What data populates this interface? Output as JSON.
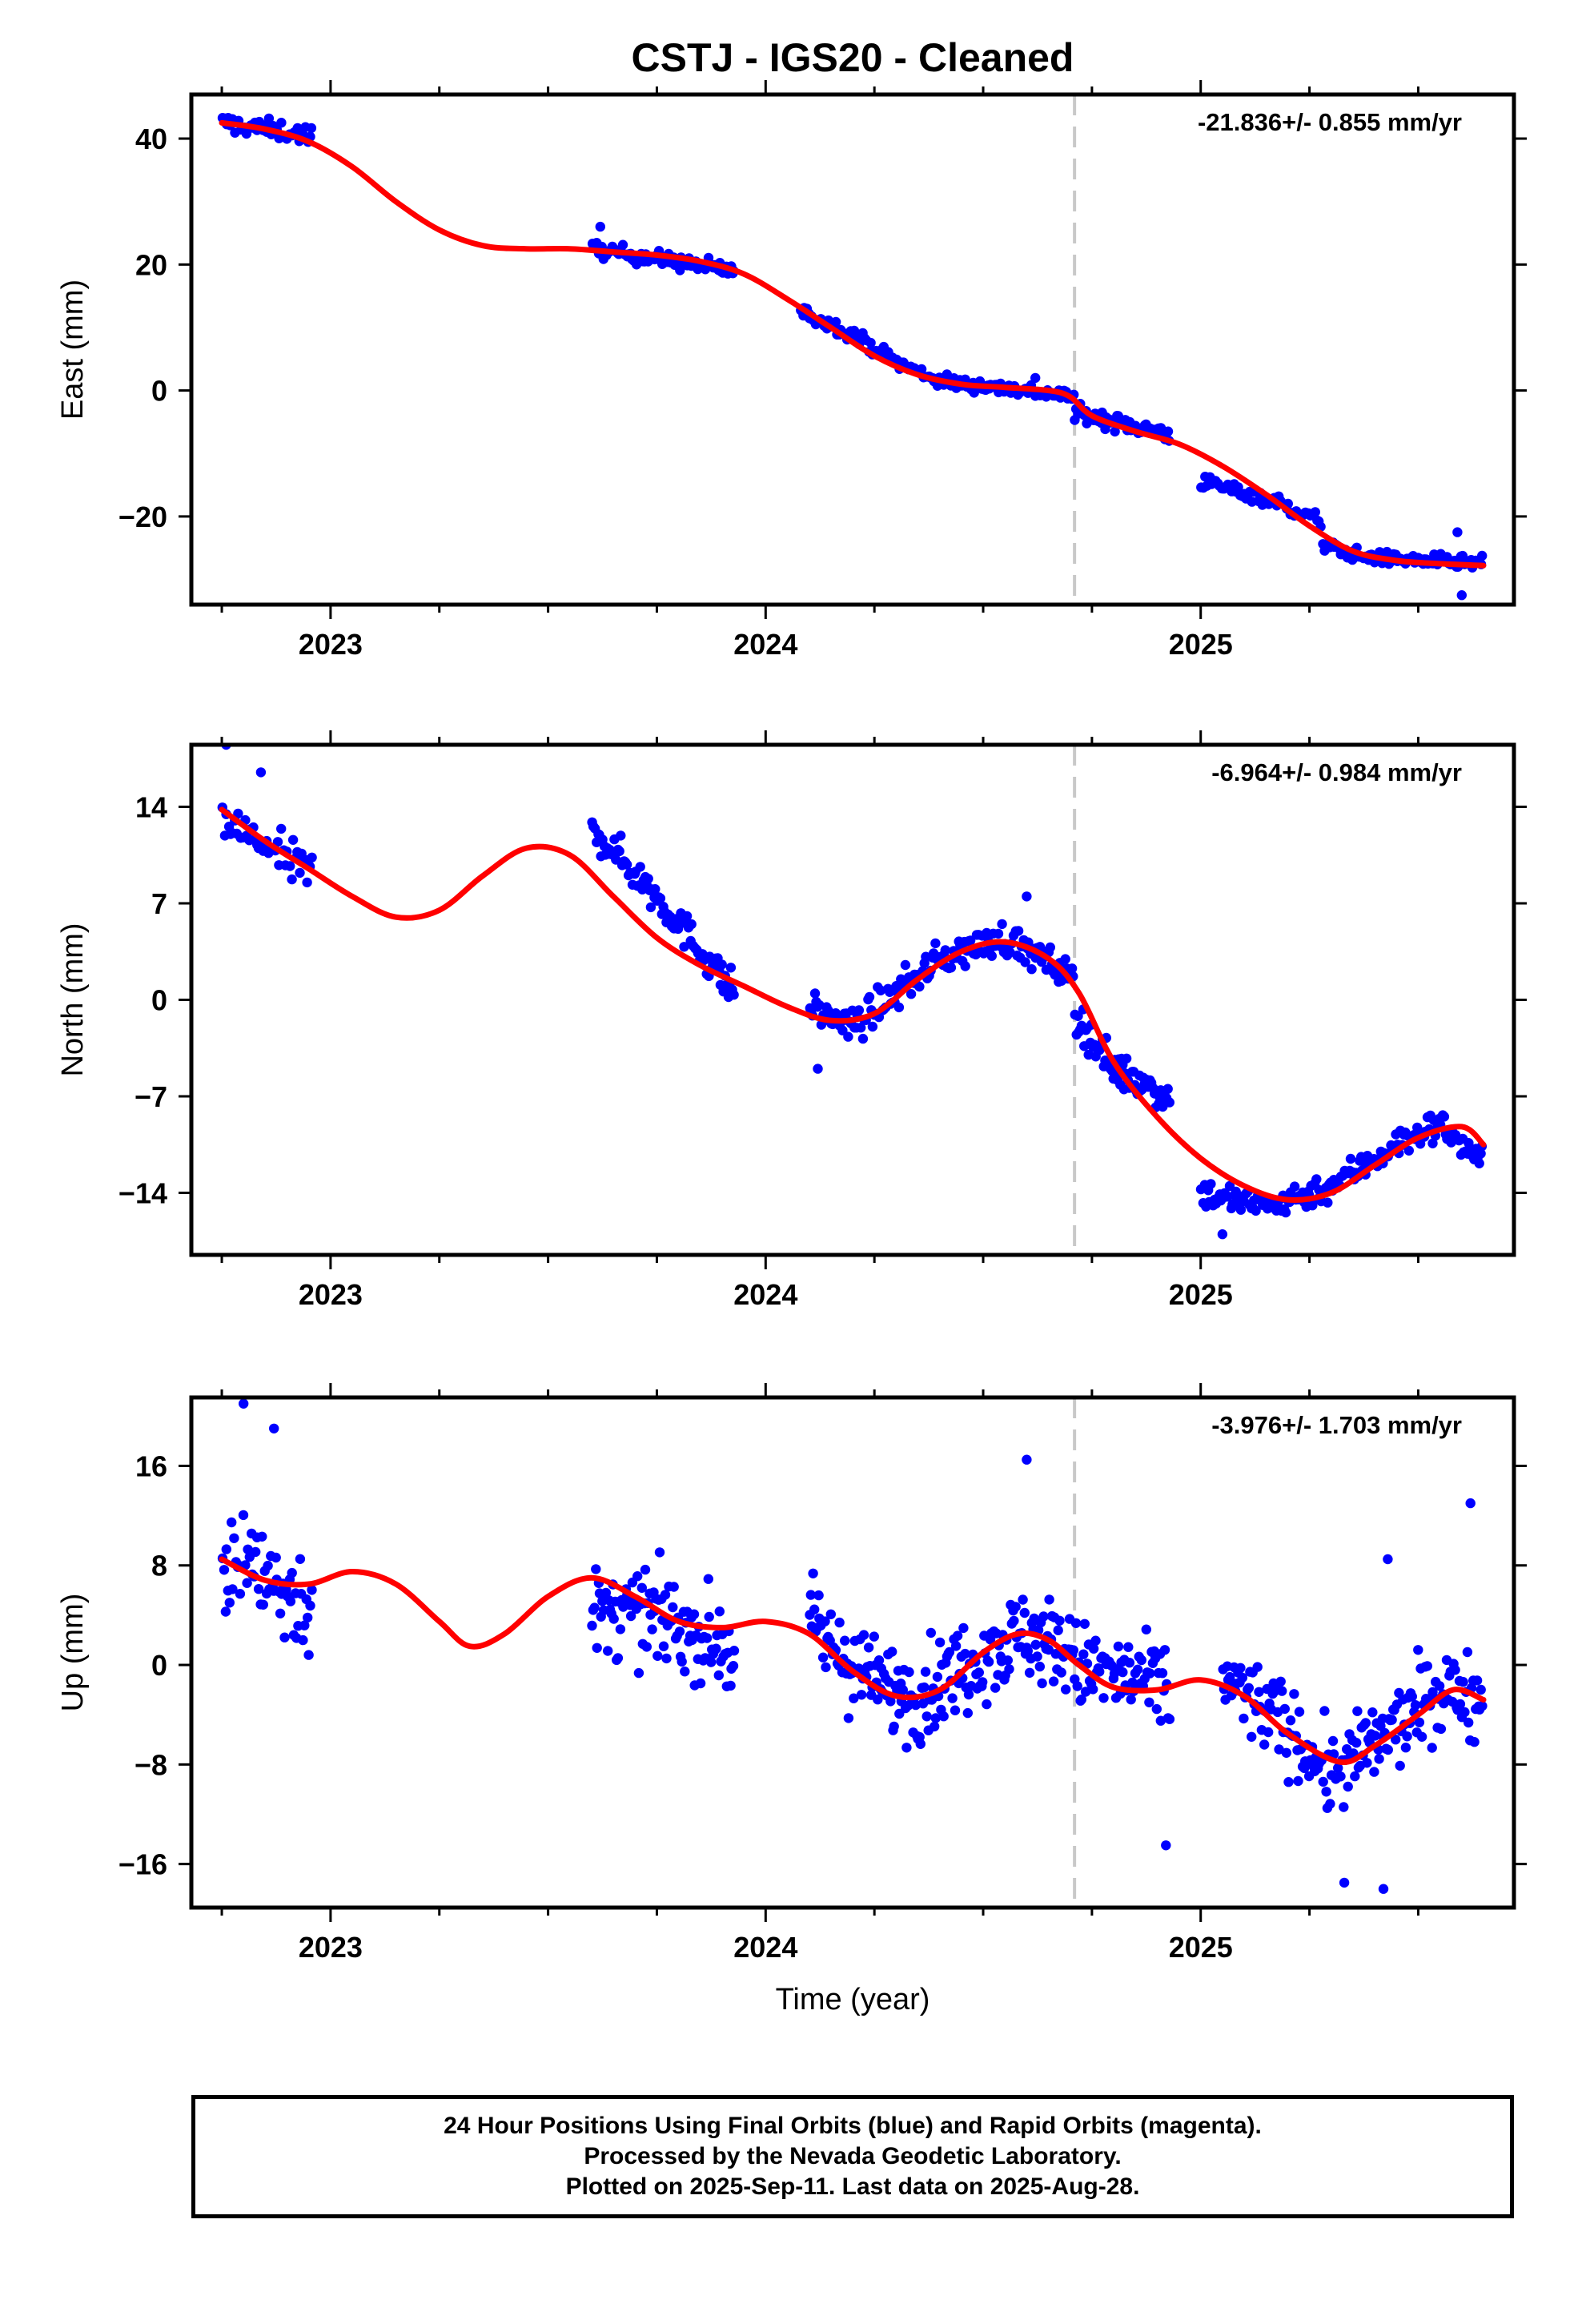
{
  "title": "CSTJ  - IGS20 - Cleaned",
  "footer": {
    "line1": "24 Hour Positions Using Final Orbits (blue) and Rapid Orbits (magenta).",
    "line2": "Processed by the Nevada Geodetic Laboratory.",
    "line3": "Plotted on 2025-Sep-11. Last data on 2025-Aug-28."
  },
  "colors": {
    "data": "#0000ff",
    "fit": "#ff0000",
    "marker": "#c8c8c8",
    "axis": "#000000"
  },
  "chart_data": [
    {
      "type": "scatter",
      "ylabel": "East (mm)",
      "xlabel": "",
      "rate_label": "-21.836+/- 0.855 mm/yr",
      "xlim": [
        2022.68,
        2025.72
      ],
      "ylim": [
        -34,
        47
      ],
      "yticks": [
        40,
        20,
        0,
        -20
      ],
      "ytick_labels": [
        "40",
        "20",
        "0",
        "−20"
      ],
      "xticks": [
        2023,
        2024,
        2025
      ],
      "event_line": 2024.71,
      "points_series": {
        "name": "",
        "segments": [
          {
            "start": 2022.75,
            "end": 2022.96,
            "n": 45,
            "trend": [
              [
                2022.75,
                42.5
              ],
              [
                2022.96,
                40.5
              ]
            ],
            "scatter": 1.5
          },
          {
            "start": 2023.6,
            "end": 2023.93,
            "n": 90,
            "trend": [
              [
                2023.6,
                22.5
              ],
              [
                2023.93,
                19.0
              ]
            ],
            "scatter": 1.2
          },
          {
            "start": 2024.08,
            "end": 2024.71,
            "n": 150,
            "trend": [
              [
                2024.08,
                12.5
              ],
              [
                2024.2,
                9.0
              ],
              [
                2024.3,
                4.5
              ],
              [
                2024.4,
                1.5
              ],
              [
                2024.6,
                0.0
              ],
              [
                2024.71,
                -1.0
              ]
            ],
            "scatter": 1.1
          },
          {
            "start": 2024.71,
            "end": 2024.93,
            "n": 70,
            "trend": [
              [
                2024.71,
                -3.5
              ],
              [
                2024.93,
                -7.0
              ]
            ],
            "scatter": 1.2
          },
          {
            "start": 2025.0,
            "end": 2025.28,
            "n": 60,
            "trend": [
              [
                2025.0,
                -14.5
              ],
              [
                2025.15,
                -17.0
              ],
              [
                2025.28,
                -21.0
              ]
            ],
            "scatter": 1.2
          },
          {
            "start": 2025.28,
            "end": 2025.65,
            "n": 100,
            "trend": [
              [
                2025.28,
                -24.5
              ],
              [
                2025.38,
                -26.5
              ],
              [
                2025.65,
                -27.5
              ]
            ],
            "scatter": 1.0
          }
        ],
        "outliers": [
          [
            2025.6,
            -32.5
          ],
          [
            2025.59,
            -22.5
          ],
          [
            2024.62,
            2.0
          ],
          [
            2023.62,
            26.0
          ]
        ]
      },
      "fit_series": {
        "name": "",
        "x": [
          2022.75,
          2022.85,
          2022.95,
          2023.05,
          2023.15,
          2023.25,
          2023.35,
          2023.45,
          2023.55,
          2023.65,
          2023.75,
          2023.85,
          2023.95,
          2024.05,
          2024.15,
          2024.25,
          2024.35,
          2024.45,
          2024.55,
          2024.65,
          2024.7,
          2024.75,
          2024.85,
          2024.95,
          2025.05,
          2025.15,
          2025.25,
          2025.35,
          2025.45,
          2025.55,
          2025.65
        ],
        "y": [
          42.5,
          41.5,
          39.5,
          35.5,
          30.0,
          25.5,
          23.0,
          22.5,
          22.5,
          22.0,
          21.5,
          20.5,
          18.5,
          14.5,
          10.0,
          5.5,
          2.5,
          1.0,
          0.5,
          0.0,
          -1.0,
          -4.0,
          -6.5,
          -8.5,
          -12.0,
          -16.5,
          -21.5,
          -25.5,
          -27.0,
          -27.5,
          -27.8
        ]
      }
    },
    {
      "type": "scatter",
      "ylabel": "North (mm)",
      "xlabel": "",
      "rate_label": "-6.964+/- 0.984 mm/yr",
      "xlim": [
        2022.68,
        2025.72
      ],
      "ylim": [
        -18.5,
        18.5
      ],
      "yticks": [
        14,
        7,
        0,
        -7,
        -14
      ],
      "ytick_labels": [
        "14",
        "7",
        "0",
        "−7",
        "−14"
      ],
      "xticks": [
        2023,
        2024,
        2025
      ],
      "event_line": 2024.71,
      "points_series": {
        "name": "",
        "segments": [
          {
            "start": 2022.75,
            "end": 2022.96,
            "n": 45,
            "trend": [
              [
                2022.75,
                13.0
              ],
              [
                2022.96,
                9.0
              ]
            ],
            "scatter": 1.6
          },
          {
            "start": 2023.6,
            "end": 2023.93,
            "n": 95,
            "trend": [
              [
                2023.6,
                12.5
              ],
              [
                2023.75,
                7.5
              ],
              [
                2023.93,
                0.5
              ]
            ],
            "scatter": 1.3
          },
          {
            "start": 2024.1,
            "end": 2024.71,
            "n": 160,
            "trend": [
              [
                2024.1,
                -0.5
              ],
              [
                2024.2,
                -2.0
              ],
              [
                2024.3,
                0.5
              ],
              [
                2024.4,
                3.0
              ],
              [
                2024.55,
                4.5
              ],
              [
                2024.71,
                1.5
              ]
            ],
            "scatter": 1.2
          },
          {
            "start": 2024.71,
            "end": 2024.93,
            "n": 70,
            "trend": [
              [
                2024.71,
                -1.0
              ],
              [
                2024.8,
                -5.0
              ],
              [
                2024.93,
                -7.0
              ]
            ],
            "scatter": 1.3
          },
          {
            "start": 2025.0,
            "end": 2025.65,
            "n": 170,
            "trend": [
              [
                2025.0,
                -14.0
              ],
              [
                2025.15,
                -15.0
              ],
              [
                2025.3,
                -13.5
              ],
              [
                2025.45,
                -10.5
              ],
              [
                2025.55,
                -9.0
              ],
              [
                2025.65,
                -12.0
              ]
            ],
            "scatter": 1.1
          }
        ],
        "outliers": [
          [
            2022.76,
            18.5
          ],
          [
            2022.84,
            16.5
          ],
          [
            2024.6,
            7.5
          ],
          [
            2025.05,
            -17.0
          ],
          [
            2024.12,
            -5.0
          ]
        ]
      },
      "fit_series": {
        "name": "",
        "x": [
          2022.75,
          2022.85,
          2022.95,
          2023.05,
          2023.15,
          2023.25,
          2023.35,
          2023.45,
          2023.55,
          2023.65,
          2023.75,
          2023.85,
          2023.95,
          2024.05,
          2024.15,
          2024.25,
          2024.35,
          2024.45,
          2024.55,
          2024.65,
          2024.72,
          2024.8,
          2024.9,
          2025.0,
          2025.1,
          2025.2,
          2025.3,
          2025.4,
          2025.5,
          2025.6,
          2025.65
        ],
        "y": [
          13.8,
          11.5,
          9.5,
          7.5,
          6.0,
          6.5,
          9.0,
          11.0,
          10.5,
          7.5,
          4.5,
          2.5,
          1.0,
          -0.5,
          -1.5,
          -1.0,
          1.5,
          3.5,
          4.2,
          3.0,
          0.5,
          -4.5,
          -8.5,
          -11.5,
          -13.5,
          -14.5,
          -14.0,
          -12.0,
          -10.0,
          -9.2,
          -10.5
        ]
      }
    },
    {
      "type": "scatter",
      "ylabel": "Up (mm)",
      "xlabel": "Time (year)",
      "rate_label": "-3.976+/- 1.703 mm/yr",
      "xlim": [
        2022.68,
        2025.72
      ],
      "ylim": [
        -19.5,
        21.5
      ],
      "yticks": [
        16,
        8,
        0,
        -8,
        -16
      ],
      "ytick_labels": [
        "16",
        "8",
        "0",
        "−8",
        "−16"
      ],
      "xticks": [
        2023,
        2024,
        2025
      ],
      "xtick_labels": [
        "2023",
        "2024",
        "2025"
      ],
      "event_line": 2024.71,
      "points_series": {
        "name": "",
        "segments": [
          {
            "start": 2022.75,
            "end": 2022.96,
            "n": 60,
            "trend": [
              [
                2022.75,
                9.0
              ],
              [
                2022.96,
                5.0
              ]
            ],
            "scatter": 4.5
          },
          {
            "start": 2023.6,
            "end": 2023.93,
            "n": 110,
            "trend": [
              [
                2023.6,
                4.0
              ],
              [
                2023.75,
                4.0
              ],
              [
                2023.93,
                1.0
              ]
            ],
            "scatter": 3.5
          },
          {
            "start": 2024.1,
            "end": 2024.71,
            "n": 210,
            "trend": [
              [
                2024.1,
                3.0
              ],
              [
                2024.25,
                -1.5
              ],
              [
                2024.35,
                -2.5
              ],
              [
                2024.5,
                1.0
              ],
              [
                2024.6,
                2.5
              ],
              [
                2024.71,
                1.0
              ]
            ],
            "scatter": 3.6
          },
          {
            "start": 2024.71,
            "end": 2024.93,
            "n": 70,
            "trend": [
              [
                2024.71,
                0.0
              ],
              [
                2024.93,
                -2.0
              ]
            ],
            "scatter": 3.5
          },
          {
            "start": 2025.05,
            "end": 2025.65,
            "n": 190,
            "trend": [
              [
                2025.05,
                -1.0
              ],
              [
                2025.2,
                -5.0
              ],
              [
                2025.3,
                -9.0
              ],
              [
                2025.45,
                -5.0
              ],
              [
                2025.55,
                -2.0
              ],
              [
                2025.65,
                -2.5
              ]
            ],
            "scatter": 3.3
          }
        ],
        "outliers": [
          [
            2022.8,
            21.0
          ],
          [
            2022.87,
            19.0
          ],
          [
            2024.6,
            16.5
          ],
          [
            2025.62,
            13.0
          ],
          [
            2025.43,
            8.5
          ],
          [
            2025.33,
            -17.5
          ],
          [
            2025.42,
            -18.0
          ],
          [
            2024.92,
            -14.5
          ]
        ]
      },
      "fit_series": {
        "name": "",
        "x": [
          2022.75,
          2022.85,
          2022.95,
          2023.05,
          2023.15,
          2023.25,
          2023.32,
          2023.4,
          2023.5,
          2023.6,
          2023.7,
          2023.8,
          2023.9,
          2024.0,
          2024.1,
          2024.2,
          2024.3,
          2024.4,
          2024.5,
          2024.58,
          2024.65,
          2024.72,
          2024.8,
          2024.9,
          2025.0,
          2025.1,
          2025.2,
          2025.32,
          2025.4,
          2025.5,
          2025.58,
          2025.65
        ],
        "y": [
          8.5,
          6.8,
          6.5,
          7.5,
          6.5,
          3.5,
          1.5,
          2.5,
          5.5,
          7.0,
          5.5,
          3.5,
          3.0,
          3.5,
          2.5,
          -0.5,
          -2.5,
          -2.0,
          1.0,
          2.5,
          2.0,
          0.0,
          -1.8,
          -2.0,
          -1.2,
          -2.5,
          -5.5,
          -7.8,
          -6.5,
          -4.0,
          -2.0,
          -2.8
        ]
      }
    }
  ]
}
